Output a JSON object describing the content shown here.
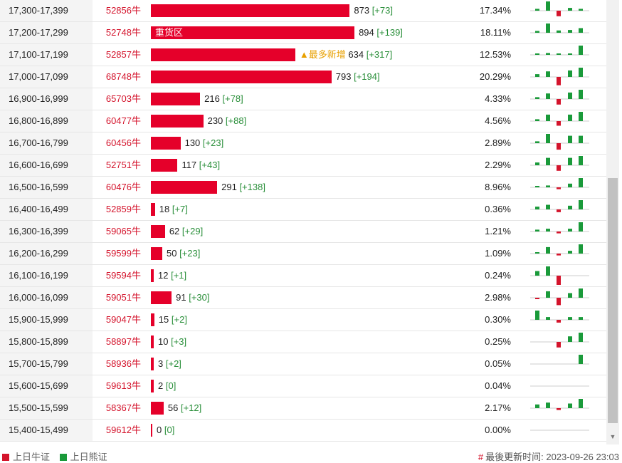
{
  "rows": [
    {
      "range": "17,300-17,399",
      "code": "52856牛",
      "value": 873,
      "delta": "[+73]",
      "pct": "17.34%",
      "bar_label": "",
      "note": "",
      "spark": [
        0.2,
        1.0,
        -0.6,
        0.3,
        0.2
      ]
    },
    {
      "range": "17,200-17,299",
      "code": "52748牛",
      "value": 894,
      "delta": "[+139]",
      "pct": "18.11%",
      "bar_label": "重货区",
      "note": "",
      "spark": [
        0.2,
        1.0,
        0.25,
        0.3,
        0.5
      ]
    },
    {
      "range": "17,100-17,199",
      "code": "52857牛",
      "value": 634,
      "delta": "[+317]",
      "pct": "12.53%",
      "bar_label": "",
      "note": "▲最多新增",
      "spark": [
        0.15,
        0.2,
        0.15,
        0.15,
        1.0
      ]
    },
    {
      "range": "17,000-17,099",
      "code": "68748牛",
      "value": 793,
      "delta": "[+194]",
      "pct": "20.29%",
      "bar_label": "",
      "note": "",
      "spark": [
        0.3,
        0.6,
        -0.9,
        0.7,
        1.0
      ]
    },
    {
      "range": "16,900-16,999",
      "code": "65703牛",
      "value": 216,
      "delta": "[+78]",
      "pct": "4.33%",
      "bar_label": "",
      "note": "",
      "spark": [
        0.2,
        0.6,
        -0.6,
        0.7,
        1.0
      ]
    },
    {
      "range": "16,800-16,899",
      "code": "60477牛",
      "value": 230,
      "delta": "[+88]",
      "pct": "4.56%",
      "bar_label": "",
      "note": "",
      "spark": [
        0.2,
        0.7,
        -0.5,
        0.7,
        1.0
      ]
    },
    {
      "range": "16,700-16,799",
      "code": "60456牛",
      "value": 130,
      "delta": "[+23]",
      "pct": "2.89%",
      "bar_label": "",
      "note": "",
      "spark": [
        0.2,
        1.0,
        -0.7,
        0.8,
        0.8
      ]
    },
    {
      "range": "16,600-16,699",
      "code": "52751牛",
      "value": 117,
      "delta": "[+43]",
      "pct": "2.29%",
      "bar_label": "",
      "note": "",
      "spark": [
        0.3,
        0.8,
        -0.6,
        0.8,
        1.0
      ]
    },
    {
      "range": "16,500-16,599",
      "code": "60476牛",
      "value": 291,
      "delta": "[+138]",
      "pct": "8.96%",
      "bar_label": "",
      "note": "",
      "spark": [
        0.1,
        0.2,
        -0.2,
        0.4,
        1.0
      ]
    },
    {
      "range": "16,400-16,499",
      "code": "52859牛",
      "value": 18,
      "delta": "[+7]",
      "pct": "0.36%",
      "bar_label": "",
      "note": "",
      "spark": [
        0.3,
        0.5,
        -0.3,
        0.4,
        1.0
      ]
    },
    {
      "range": "16,300-16,399",
      "code": "59065牛",
      "value": 62,
      "delta": "[+29]",
      "pct": "1.21%",
      "bar_label": "",
      "note": "",
      "spark": [
        0.2,
        0.3,
        -0.2,
        0.3,
        1.0
      ]
    },
    {
      "range": "16,200-16,299",
      "code": "59599牛",
      "value": 50,
      "delta": "[+23]",
      "pct": "1.09%",
      "bar_label": "",
      "note": "",
      "spark": [
        0.1,
        0.7,
        -0.2,
        0.3,
        1.0
      ]
    },
    {
      "range": "16,100-16,199",
      "code": "59594牛",
      "value": 12,
      "delta": "[+1]",
      "pct": "0.24%",
      "bar_label": "",
      "note": "",
      "spark": [
        0.5,
        1.0,
        -1.0,
        0,
        0
      ]
    },
    {
      "range": "16,000-16,099",
      "code": "59051牛",
      "value": 91,
      "delta": "[+30]",
      "pct": "2.98%",
      "bar_label": "",
      "note": "",
      "spark": [
        -0.1,
        0.7,
        -0.8,
        0.5,
        1.0
      ]
    },
    {
      "range": "15,900-15,999",
      "code": "59047牛",
      "value": 15,
      "delta": "[+2]",
      "pct": "0.30%",
      "bar_label": "",
      "note": "",
      "spark": [
        1.0,
        0.3,
        -0.3,
        0.3,
        0.3
      ]
    },
    {
      "range": "15,800-15,899",
      "code": "58897牛",
      "value": 10,
      "delta": "[+3]",
      "pct": "0.25%",
      "bar_label": "",
      "note": "",
      "spark": [
        0,
        0,
        -0.6,
        0.6,
        1.0
      ]
    },
    {
      "range": "15,700-15,799",
      "code": "58936牛",
      "value": 3,
      "delta": "[+2]",
      "pct": "0.05%",
      "bar_label": "",
      "note": "",
      "spark": [
        0,
        0,
        0,
        0,
        1.0
      ]
    },
    {
      "range": "15,600-15,699",
      "code": "59613牛",
      "value": 2,
      "delta": "[0]",
      "pct": "0.04%",
      "bar_label": "",
      "note": "",
      "spark": [
        0,
        0,
        0,
        0,
        0
      ]
    },
    {
      "range": "15,500-15,599",
      "code": "58367牛",
      "value": 56,
      "delta": "[+12]",
      "pct": "2.17%",
      "bar_label": "",
      "note": "",
      "spark": [
        0.4,
        0.6,
        -0.2,
        0.5,
        1.0
      ]
    },
    {
      "range": "15,400-15,499",
      "code": "59612牛",
      "value": 0,
      "delta": "[0]",
      "pct": "0.00%",
      "bar_label": "",
      "note": "",
      "spark": [
        0,
        0,
        0,
        0,
        0
      ]
    }
  ],
  "legend": {
    "bull_label": "上日牛证",
    "bear_label": "上日熊证",
    "bull_color": "#d4142c",
    "bear_color": "#1a9a3a"
  },
  "footer": {
    "hash": "#",
    "updated_label": "最後更新时间:",
    "updated_time": "2023-09-26 23:03"
  }
}
